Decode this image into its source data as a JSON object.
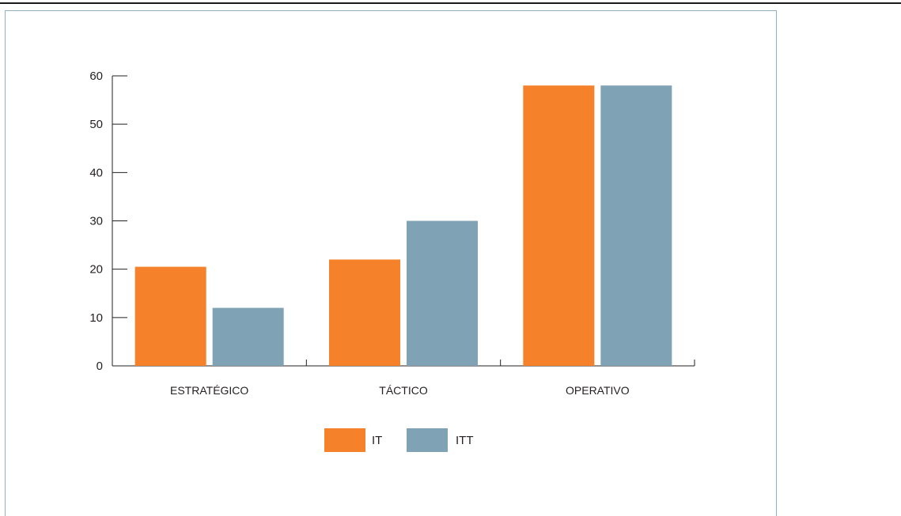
{
  "chart_data": {
    "type": "bar",
    "title": "",
    "xlabel": "",
    "ylabel": "",
    "categories": [
      "ESTRATÉGICO",
      "TÁCTICO",
      "OPERATIVO"
    ],
    "series": [
      {
        "name": "IT",
        "color": "#f5822a",
        "values": [
          20.5,
          22,
          58
        ]
      },
      {
        "name": "ITT",
        "color": "#7fa2b5",
        "values": [
          12,
          30,
          58
        ]
      }
    ],
    "ylim": [
      0,
      60
    ],
    "yticks": [
      "0",
      "10",
      "20",
      "30",
      "40",
      "50",
      "60"
    ],
    "grid": false,
    "legend_position": "bottom-center"
  }
}
